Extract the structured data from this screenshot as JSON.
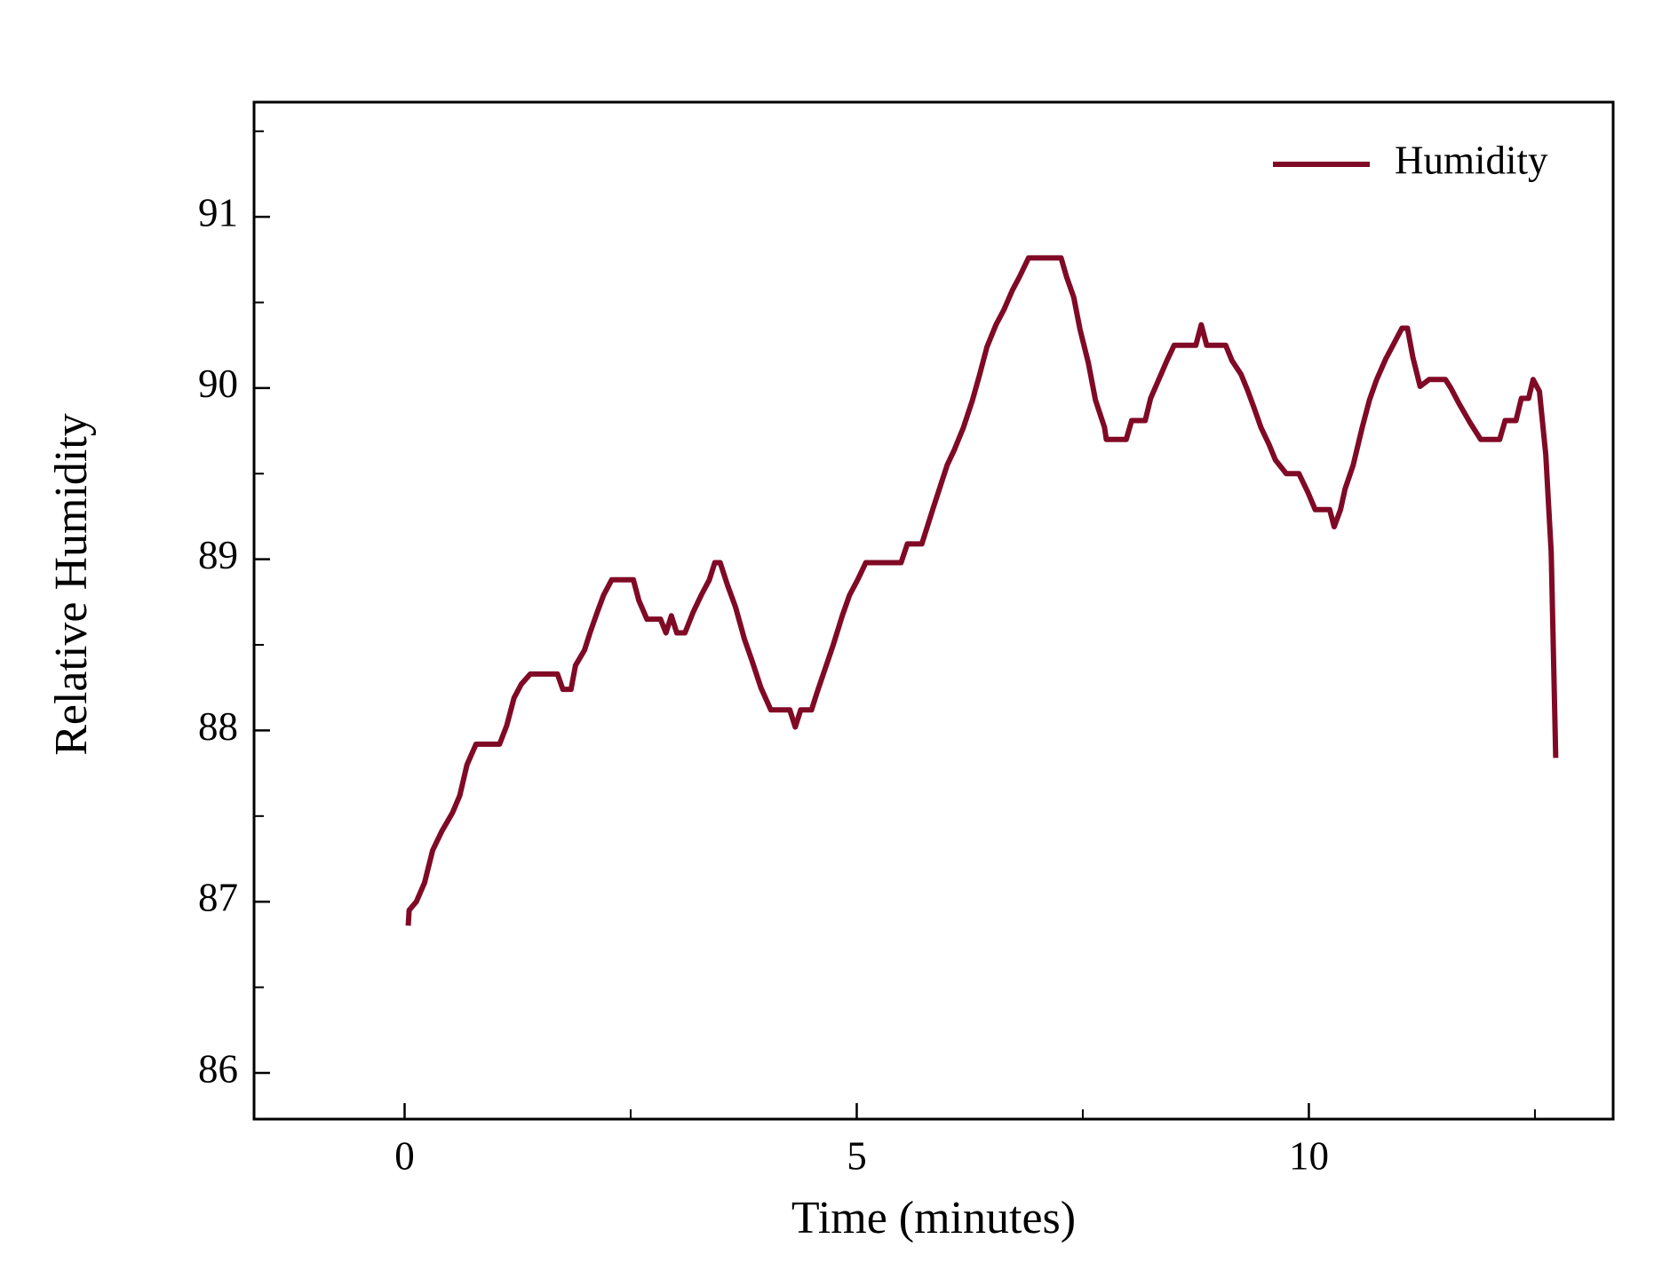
{
  "chart_data": {
    "type": "line",
    "x_label": "Time (minutes)",
    "y_label": "Relative Humidity",
    "xlim": [
      -1.665,
      13.365
    ],
    "ylim": [
      85.73,
      91.67
    ],
    "xticks": [
      0,
      5,
      10
    ],
    "yticks": [
      86,
      87,
      88,
      89,
      90,
      91
    ],
    "x_minor_ticks": [
      2.5,
      7.5,
      12.5
    ],
    "y_minor_ticks": [
      85.5,
      86.5,
      87.5,
      88.5,
      89.5,
      90.5,
      91.5
    ],
    "legend": "upper right",
    "grid": false,
    "x": [
      0.04,
      0.05,
      0.13,
      0.22,
      0.31,
      0.41,
      0.53,
      0.61,
      0.69,
      0.79,
      1.05,
      1.13,
      1.21,
      1.29,
      1.39,
      1.69,
      1.75,
      1.84,
      1.89,
      1.99,
      2.05,
      2.13,
      2.2,
      2.29,
      2.53,
      2.59,
      2.68,
      2.83,
      2.89,
      2.95,
      3.01,
      3.1,
      3.19,
      3.28,
      3.37,
      3.43,
      3.49,
      3.57,
      3.66,
      3.76,
      3.84,
      3.94,
      4.05,
      4.26,
      4.32,
      4.38,
      4.5,
      4.56,
      4.65,
      4.74,
      4.84,
      4.92,
      5.01,
      5.1,
      5.49,
      5.56,
      5.72,
      5.78,
      5.84,
      5.92,
      6.0,
      6.08,
      6.18,
      6.28,
      6.36,
      6.44,
      6.54,
      6.63,
      6.72,
      6.8,
      6.9,
      7.26,
      7.32,
      7.4,
      7.47,
      7.56,
      7.64,
      7.74,
      7.76,
      7.98,
      8.04,
      8.19,
      8.25,
      8.34,
      8.43,
      8.51,
      8.75,
      8.81,
      8.87,
      9.08,
      9.15,
      9.25,
      9.32,
      9.39,
      9.47,
      9.56,
      9.63,
      9.75,
      9.89,
      9.99,
      10.07,
      10.23,
      10.28,
      10.35,
      10.4,
      10.49,
      10.59,
      10.67,
      10.75,
      10.85,
      10.93,
      11.03,
      11.09,
      11.15,
      11.23,
      11.33,
      11.51,
      11.57,
      11.66,
      11.78,
      11.9,
      12.11,
      12.17,
      12.29,
      12.35,
      12.43,
      12.48,
      12.55,
      12.62,
      12.68,
      12.73
    ],
    "series": [
      {
        "name": "Humidity",
        "color": "#800a26",
        "values": [
          86.86,
          86.95,
          87.0,
          87.11,
          87.3,
          87.41,
          87.52,
          87.62,
          87.8,
          87.92,
          87.92,
          88.03,
          88.19,
          88.27,
          88.33,
          88.33,
          88.24,
          88.24,
          88.38,
          88.47,
          88.57,
          88.69,
          88.79,
          88.88,
          88.88,
          88.76,
          88.65,
          88.65,
          88.57,
          88.67,
          88.57,
          88.57,
          88.69,
          88.79,
          88.88,
          88.98,
          88.98,
          88.85,
          88.72,
          88.53,
          88.41,
          88.25,
          88.12,
          88.12,
          88.02,
          88.12,
          88.12,
          88.22,
          88.36,
          88.5,
          88.67,
          88.79,
          88.88,
          88.98,
          88.98,
          89.09,
          89.09,
          89.19,
          89.29,
          89.42,
          89.55,
          89.64,
          89.77,
          89.93,
          90.08,
          90.24,
          90.37,
          90.46,
          90.57,
          90.65,
          90.76,
          90.76,
          90.65,
          90.53,
          90.34,
          90.15,
          89.93,
          89.77,
          89.7,
          89.7,
          89.81,
          89.81,
          89.94,
          90.05,
          90.16,
          90.25,
          90.25,
          90.37,
          90.25,
          90.25,
          90.16,
          90.08,
          89.99,
          89.89,
          89.77,
          89.67,
          89.58,
          89.5,
          89.5,
          89.39,
          89.29,
          89.29,
          89.19,
          89.29,
          89.41,
          89.55,
          89.77,
          89.93,
          90.05,
          90.17,
          90.25,
          90.35,
          90.35,
          90.18,
          90.01,
          90.05,
          90.05,
          90.0,
          89.91,
          89.8,
          89.7,
          89.7,
          89.81,
          89.81,
          89.94,
          89.94,
          90.05,
          89.98,
          89.61,
          89.04,
          87.84
        ]
      }
    ]
  }
}
